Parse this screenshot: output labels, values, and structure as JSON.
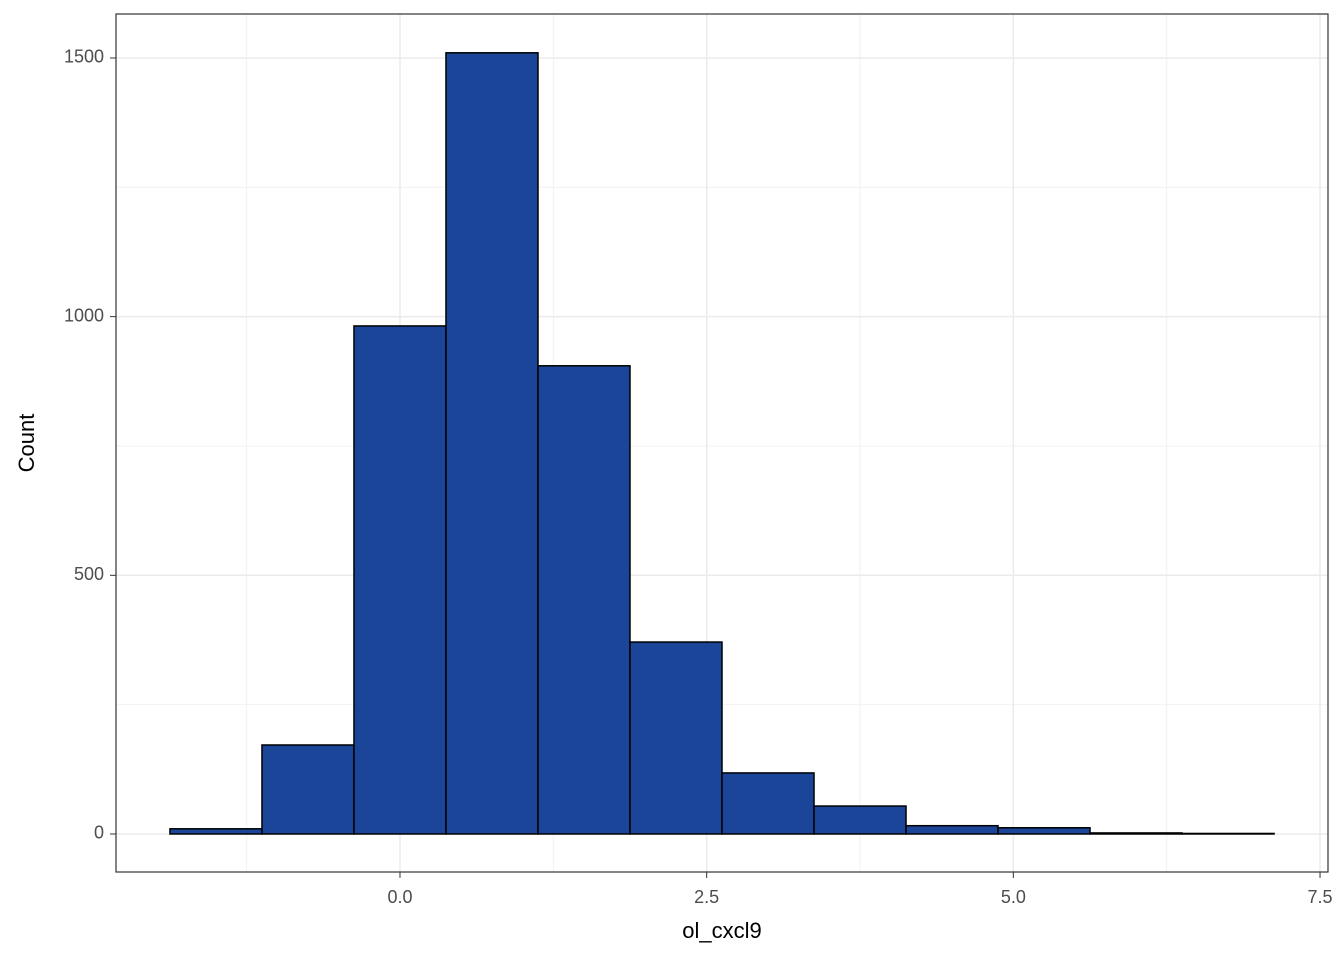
{
  "chart_data": {
    "type": "histogram",
    "xlabel": "ol_cxcl9",
    "ylabel": "Count",
    "bins": [
      -1.875,
      -1.125,
      -0.375,
      0.375,
      1.125,
      1.875,
      2.625,
      3.375,
      4.125,
      4.875,
      5.625,
      6.375,
      7.125
    ],
    "values": [
      10,
      172,
      982,
      1510,
      905,
      371,
      118,
      54,
      16,
      12,
      2,
      1
    ],
    "color": "#1a4599",
    "edgecolor": "#000000",
    "xlim": [
      -2.315,
      7.565
    ],
    "ylim": [
      -73.5,
      1585
    ],
    "xticks": [
      {
        "value": 0,
        "label": "0.0"
      },
      2.5,
      {
        "value": 5,
        "label": "5.0"
      },
      7.5
    ],
    "yticks": [
      0,
      500,
      1000,
      1500
    ],
    "xminor": [
      -1.25,
      1.25,
      3.75,
      6.25
    ],
    "yminor": [
      250,
      750,
      1250
    ],
    "grid": true
  }
}
